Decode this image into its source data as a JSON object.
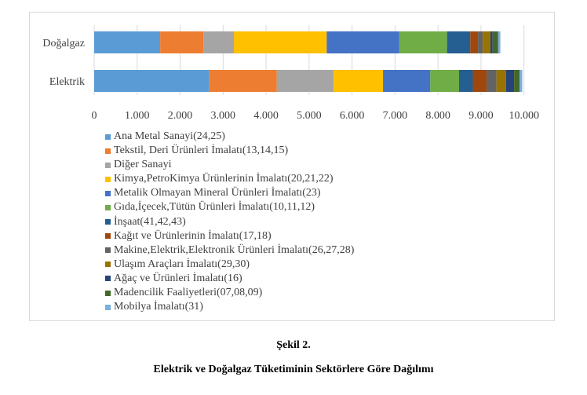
{
  "chart_data": {
    "type": "bar",
    "orientation": "horizontal",
    "stacked": true,
    "title": "",
    "xlabel": "",
    "ylabel": "",
    "categories": [
      "Doğalgaz",
      "Elektrik"
    ],
    "xlim": [
      0,
      10000
    ],
    "x_ticks": [
      0,
      1000,
      2000,
      3000,
      4000,
      5000,
      6000,
      7000,
      8000,
      9000,
      10000
    ],
    "x_tick_labels": [
      "0",
      "1.000",
      "2.000",
      "3.000",
      "4.000",
      "5.000",
      "6.000",
      "7.000",
      "8.000",
      "9.000",
      "10.000"
    ],
    "grid": "vertical",
    "legend_position": "bottom",
    "series": [
      {
        "name": "Ana Metal Sanayi(24,25)",
        "color": "#5b9bd5",
        "values": [
          1536,
          2680
        ]
      },
      {
        "name": "Tekstil, Deri Ürünleri İmalatı(13,14,15)",
        "color": "#ed7d31",
        "values": [
          1004,
          1570
        ]
      },
      {
        "name": "Diğer Sanayi",
        "color": "#a5a5a5",
        "values": [
          710,
          1320
        ]
      },
      {
        "name": "Kimya,PetroKimya Ürünlerinin İmalatı(20,21,22)",
        "color": "#ffc000",
        "values": [
          2160,
          1150
        ]
      },
      {
        "name": "Metalik Olmayan Mineral Ürünleri İmalatı(23)",
        "color": "#4472c4",
        "values": [
          1690,
          1100
        ]
      },
      {
        "name": "Gıda,İçecek,Tütün Ürünleri İmalatı(10,11,12)",
        "color": "#70ad47",
        "values": [
          1110,
          670
        ]
      },
      {
        "name": "İnşaat(41,42,43)",
        "color": "#255e91",
        "values": [
          540,
          320
        ]
      },
      {
        "name": "Kağıt ve Ürünlerinin İmalatı(17,18)",
        "color": "#9e480e",
        "values": [
          180,
          320
        ]
      },
      {
        "name": "Makine,Elektrik,Elektronik Ürünleri İmalatı(26,27,28)",
        "color": "#636363",
        "values": [
          110,
          230
        ]
      },
      {
        "name": "Ulaşım Araçları İmalatı(29,30)",
        "color": "#997300",
        "values": [
          180,
          220
        ]
      },
      {
        "name": "Ağaç ve Ürünleri İmalatı(16)",
        "color": "#264478",
        "values": [
          50,
          190
        ]
      },
      {
        "name": "Madencilik Faaliyetleri(07,08,09)",
        "color": "#43682b",
        "values": [
          130,
          130
        ]
      },
      {
        "name": "Mobilya İmalatı(31)",
        "color": "#7cafdd",
        "values": [
          50,
          60
        ]
      }
    ]
  },
  "caption": {
    "figure_number": "Şekil 2.",
    "title": "Elektrik ve Doğalgaz Tüketiminin Sektörlere Göre Dağılımı"
  }
}
